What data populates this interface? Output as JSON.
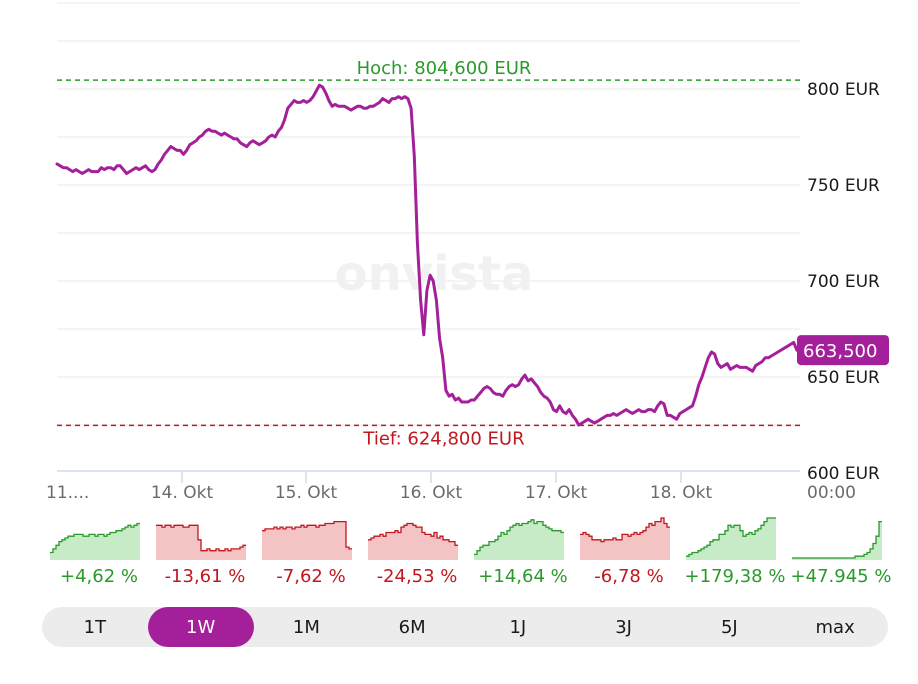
{
  "chart_data": {
    "type": "line",
    "watermark": "onvista",
    "currency": "EUR",
    "y_ticks": [
      {
        "value": 600,
        "label": "600 EUR"
      },
      {
        "value": 650,
        "label": "650 EUR"
      },
      {
        "value": 700,
        "label": "700 EUR"
      },
      {
        "value": 750,
        "label": "750 EUR"
      },
      {
        "value": 800,
        "label": "800 EUR"
      }
    ],
    "ylim": [
      600,
      825
    ],
    "x_ticks": [
      "11....",
      "14. Okt",
      "15. Okt",
      "16. Okt",
      "17. Okt",
      "18. Okt",
      "00:00"
    ],
    "grid": true,
    "high": {
      "value": 804.6,
      "label": "Hoch: 804,600 EUR",
      "color": "#2a9a2a"
    },
    "low": {
      "value": 624.8,
      "label": "Tief: 624,800 EUR",
      "color": "#c0181e"
    },
    "last": {
      "value": 663.5,
      "label": "663,500"
    },
    "line_color": "#a4209a",
    "series": [
      {
        "values": [
          761,
          760,
          759,
          759,
          758,
          757,
          758,
          757,
          756,
          757,
          758,
          757,
          757,
          757,
          759,
          758,
          759,
          759,
          758,
          760,
          760,
          758,
          756,
          757,
          758,
          759,
          758,
          759,
          760,
          758,
          757,
          758,
          761,
          763,
          766,
          768,
          770,
          769,
          768,
          768,
          766,
          768,
          771,
          772,
          773,
          775,
          776,
          778,
          779,
          778,
          778,
          777,
          776,
          777,
          776,
          775,
          774,
          774,
          772,
          771,
          770,
          772,
          773,
          772,
          771,
          772,
          773,
          775,
          776,
          775,
          778,
          780,
          784,
          790,
          792,
          794,
          793,
          793,
          794,
          793,
          794,
          796,
          799,
          802,
          801,
          798,
          794,
          791,
          792,
          791,
          791,
          791,
          790,
          789,
          790,
          791,
          791,
          790,
          790,
          791,
          791,
          792,
          793,
          795,
          794,
          793,
          795,
          795,
          796,
          795,
          796,
          795,
          790,
          765,
          720,
          690,
          672,
          695,
          703,
          700,
          690,
          670,
          660,
          643,
          640,
          641,
          638,
          639,
          637,
          637,
          637,
          638,
          638,
          640,
          642,
          644,
          645,
          644,
          642,
          641,
          641,
          640,
          643,
          645,
          646,
          645,
          646,
          649,
          651,
          648,
          649,
          647,
          645,
          642,
          640,
          639,
          637,
          633,
          632,
          635,
          632,
          631,
          633,
          630,
          628,
          625,
          626,
          627,
          628,
          627,
          626,
          627,
          628,
          629,
          630,
          630,
          631,
          630,
          631,
          632,
          633,
          632,
          631,
          632,
          633,
          632,
          632,
          633,
          633,
          632,
          635,
          637,
          636,
          630,
          630,
          629,
          628,
          631,
          632,
          633,
          634,
          635,
          640,
          646,
          650,
          655,
          660,
          663,
          662,
          657,
          655,
          656,
          657,
          654,
          655,
          656,
          655,
          655,
          655,
          654,
          653,
          656,
          657,
          658,
          660,
          660,
          661,
          662,
          663,
          664,
          665,
          666,
          667,
          668,
          664,
          663
        ]
      }
    ]
  },
  "mini_charts": [
    {
      "label": "+4,62 %",
      "trend": "pos",
      "values": [
        3,
        5,
        7,
        9,
        10,
        11,
        12,
        12,
        13,
        13,
        13,
        12,
        12,
        13,
        13,
        12,
        13,
        13,
        12,
        13,
        14,
        14,
        15,
        15,
        16,
        17,
        18,
        17,
        18,
        19
      ]
    },
    {
      "label": "-13,61 %",
      "trend": "neg",
      "values": [
        18,
        18,
        17,
        18,
        18,
        17,
        18,
        18,
        18,
        17,
        17,
        18,
        18,
        18,
        10,
        4,
        4,
        5,
        4,
        4,
        5,
        4,
        4,
        5,
        4,
        5,
        5,
        5,
        6,
        7
      ]
    },
    {
      "label": "-7,62 %",
      "trend": "neg",
      "values": [
        15,
        16,
        16,
        16,
        17,
        16,
        17,
        16,
        17,
        17,
        16,
        17,
        17,
        18,
        17,
        18,
        18,
        18,
        17,
        18,
        18,
        19,
        19,
        19,
        20,
        20,
        20,
        20,
        6,
        5
      ]
    },
    {
      "label": "-24,53 %",
      "trend": "neg",
      "values": [
        10,
        11,
        12,
        12,
        13,
        12,
        14,
        14,
        14,
        15,
        14,
        17,
        18,
        19,
        19,
        18,
        17,
        17,
        14,
        13,
        13,
        12,
        14,
        11,
        12,
        10,
        10,
        9,
        9,
        7
      ]
    },
    {
      "label": "+14,64 %",
      "trend": "pos",
      "values": [
        2,
        4,
        6,
        7,
        7,
        9,
        9,
        10,
        12,
        14,
        13,
        15,
        17,
        18,
        19,
        18,
        19,
        19,
        20,
        21,
        19,
        20,
        20,
        18,
        17,
        16,
        15,
        15,
        15,
        14
      ]
    },
    {
      "label": "-6,78 %",
      "trend": "neg",
      "values": [
        13,
        14,
        13,
        12,
        10,
        10,
        10,
        9,
        10,
        10,
        10,
        11,
        10,
        10,
        13,
        13,
        12,
        13,
        14,
        13,
        14,
        15,
        17,
        19,
        18,
        20,
        20,
        22,
        19,
        17
      ]
    },
    {
      "label": "+179,38 %",
      "trend": "pos",
      "values": [
        1,
        2,
        3,
        3,
        4,
        5,
        6,
        7,
        9,
        10,
        10,
        13,
        13,
        15,
        18,
        17,
        18,
        18,
        15,
        12,
        13,
        14,
        13,
        15,
        16,
        18,
        20,
        22,
        22,
        22
      ]
    },
    {
      "label": "+47.945 %",
      "trend": "pos",
      "values": [
        0,
        0,
        0,
        0,
        0,
        0,
        0,
        0,
        0,
        0,
        0,
        0,
        0,
        0,
        0,
        0,
        0,
        0,
        0,
        0,
        0,
        1,
        1,
        1,
        2,
        3,
        5,
        8,
        12,
        20
      ]
    }
  ],
  "ranges": [
    "1T",
    "1W",
    "1M",
    "6M",
    "1J",
    "3J",
    "5J",
    "max"
  ],
  "active_range": "1W"
}
